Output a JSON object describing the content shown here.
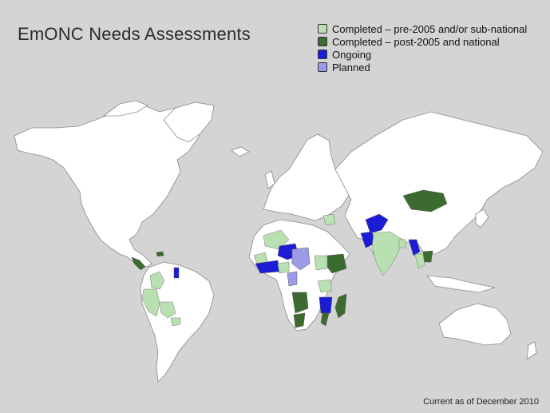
{
  "title": "EmONC Needs Assessments",
  "legend": [
    {
      "label": "Completed – pre-2005 and/or sub-national",
      "color": "#b9e0b0"
    },
    {
      "label": "Completed – post-2005 and national",
      "color": "#3b6b2f"
    },
    {
      "label": "Ongoing",
      "color": "#1c1cd6"
    },
    {
      "label": "Planned",
      "color": "#9b9be8"
    }
  ],
  "footer": "Current as of December 2010",
  "colors": {
    "background": "#d4d4d4",
    "land": "#ffffff",
    "country_border": "#8a8a8a"
  }
}
